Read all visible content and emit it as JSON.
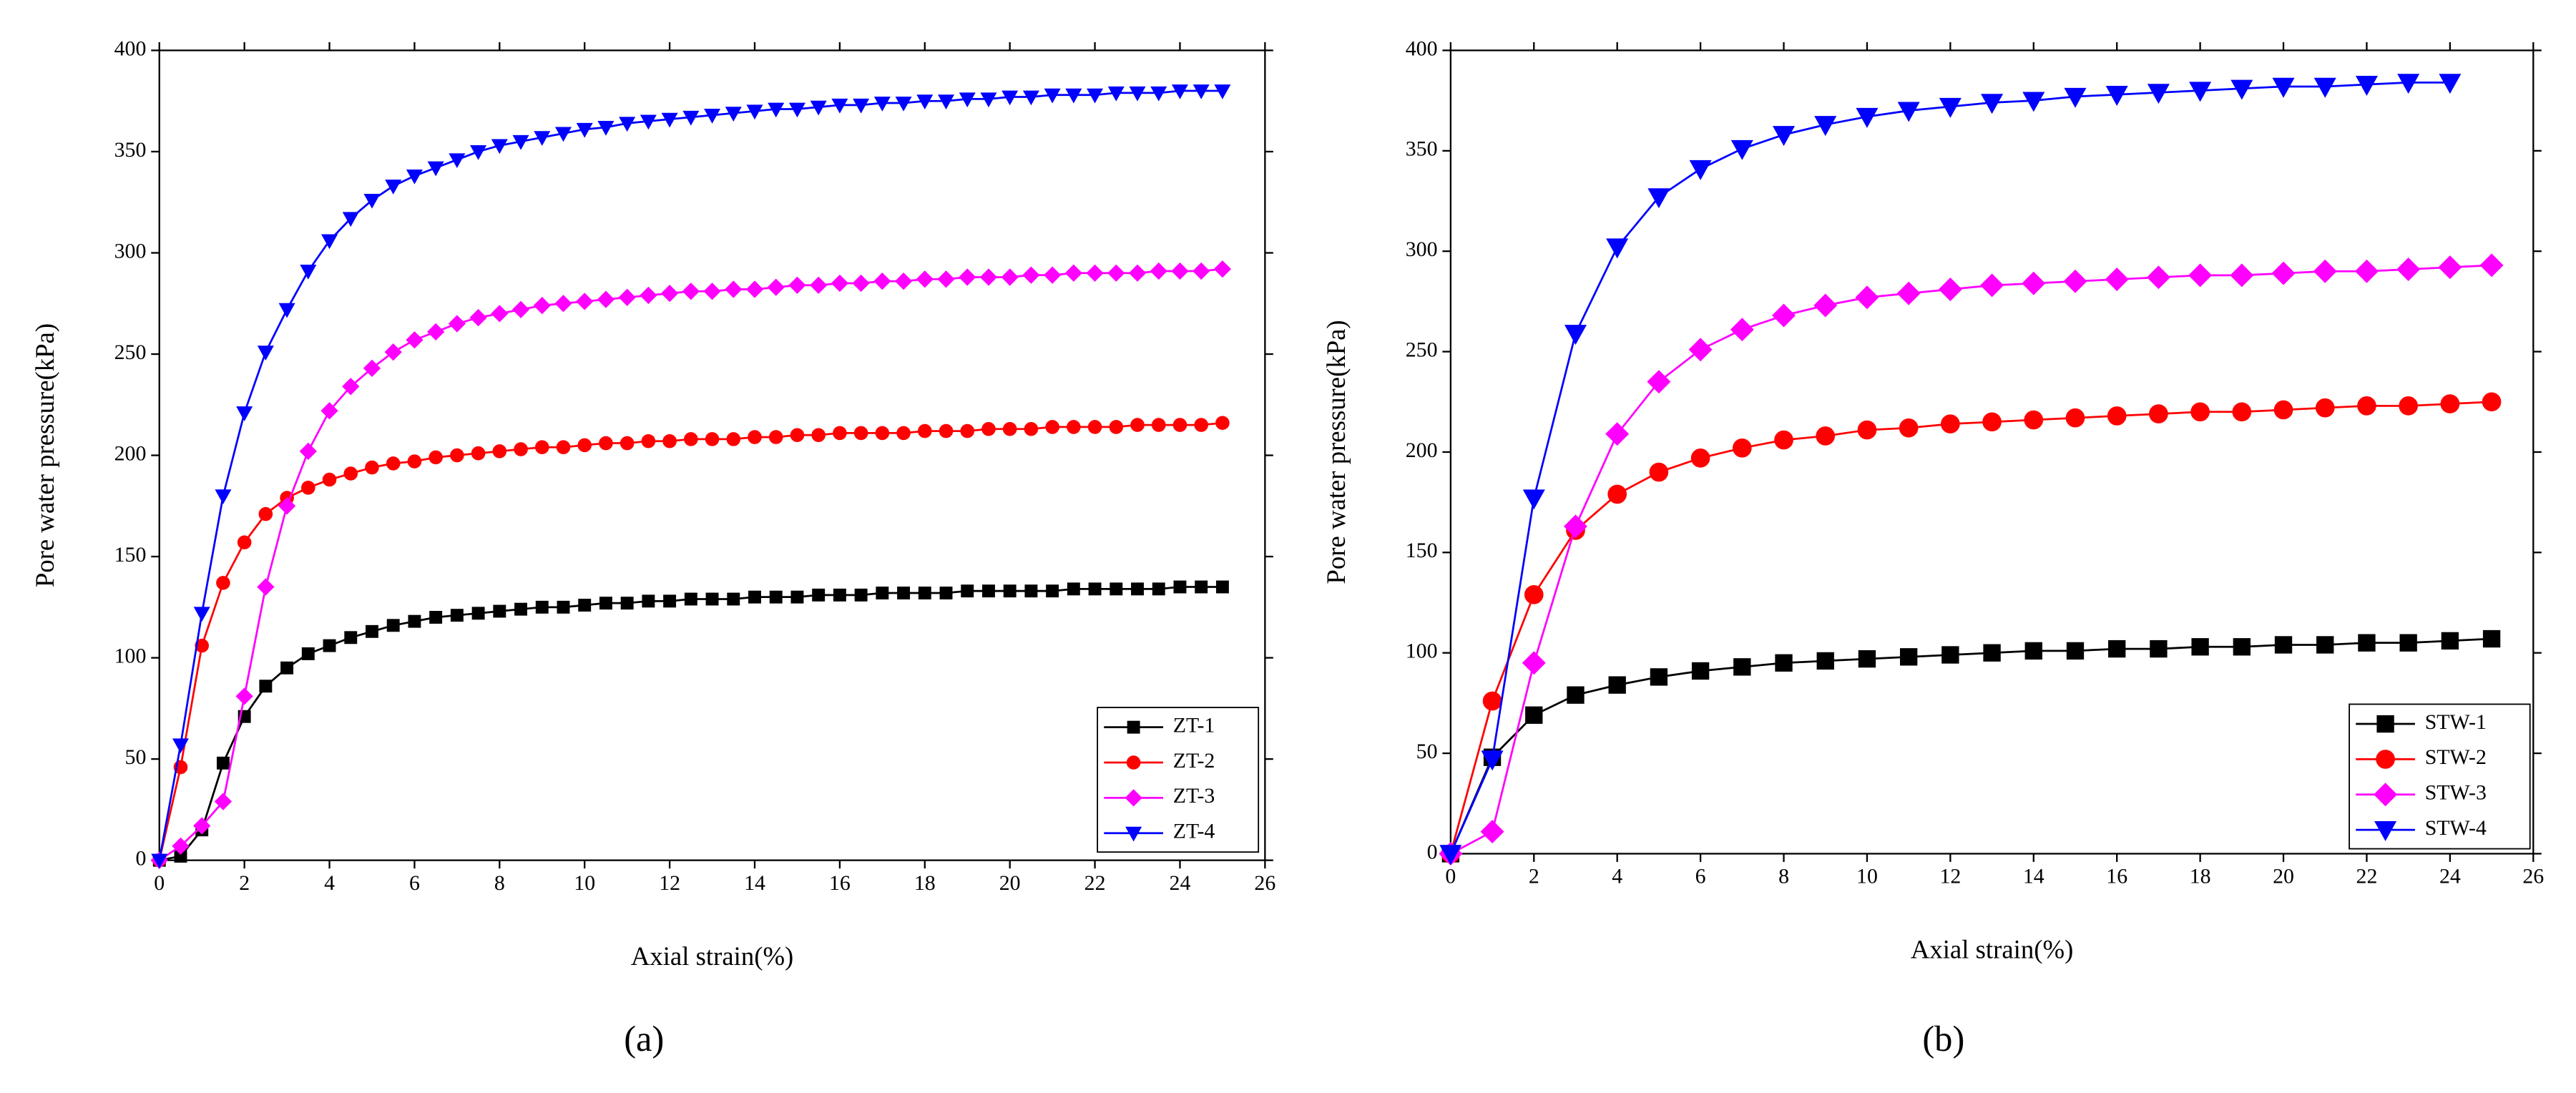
{
  "chart_data": [
    {
      "type": "line",
      "caption": "(a)",
      "xlabel": "Axial strain(%)",
      "ylabel": "Pore water pressure(kPa)",
      "xlim": [
        0,
        26
      ],
      "ylim": [
        0,
        400
      ],
      "xticks": [
        0,
        2,
        4,
        6,
        8,
        10,
        12,
        14,
        16,
        18,
        20,
        22,
        24,
        26
      ],
      "yticks": [
        0,
        50,
        100,
        150,
        200,
        250,
        300,
        350,
        400
      ],
      "legend": "lower right",
      "x": [
        0,
        0.5,
        1,
        1.5,
        2,
        2.5,
        3,
        3.5,
        4,
        4.5,
        5,
        5.5,
        6,
        6.5,
        7,
        7.5,
        8,
        8.5,
        9,
        9.5,
        10,
        10.5,
        11,
        11.5,
        12,
        12.5,
        13,
        13.5,
        14,
        14.5,
        15,
        15.5,
        16,
        16.5,
        17,
        17.5,
        18,
        18.5,
        19,
        19.5,
        20,
        20.5,
        21,
        21.5,
        22,
        22.5,
        23,
        23.5,
        24,
        24.5,
        25
      ],
      "series": [
        {
          "name": "ZT-1",
          "color": "#000000",
          "marker": "square",
          "values": [
            0,
            2,
            15,
            48,
            71,
            86,
            95,
            102,
            106,
            110,
            113,
            116,
            118,
            120,
            121,
            122,
            123,
            124,
            125,
            125,
            126,
            127,
            127,
            128,
            128,
            129,
            129,
            129,
            130,
            130,
            130,
            131,
            131,
            131,
            132,
            132,
            132,
            132,
            133,
            133,
            133,
            133,
            133,
            134,
            134,
            134,
            134,
            134,
            135,
            135,
            135
          ]
        },
        {
          "name": "ZT-2",
          "color": "#ff0000",
          "marker": "circle",
          "values": [
            0,
            46,
            106,
            137,
            157,
            171,
            179,
            184,
            188,
            191,
            194,
            196,
            197,
            199,
            200,
            201,
            202,
            203,
            204,
            204,
            205,
            206,
            206,
            207,
            207,
            208,
            208,
            208,
            209,
            209,
            210,
            210,
            211,
            211,
            211,
            211,
            212,
            212,
            212,
            213,
            213,
            213,
            214,
            214,
            214,
            214,
            215,
            215,
            215,
            215,
            216
          ]
        },
        {
          "name": "ZT-3",
          "color": "#ff00ff",
          "marker": "diamond",
          "values": [
            0,
            7,
            17,
            29,
            81,
            135,
            175,
            202,
            222,
            234,
            243,
            251,
            257,
            261,
            265,
            268,
            270,
            272,
            274,
            275,
            276,
            277,
            278,
            279,
            280,
            281,
            281,
            282,
            282,
            283,
            284,
            284,
            285,
            285,
            286,
            286,
            287,
            287,
            288,
            288,
            288,
            289,
            289,
            290,
            290,
            290,
            290,
            291,
            291,
            291,
            292
          ]
        },
        {
          "name": "ZT-4",
          "color": "#0000ff",
          "marker": "triangle-down",
          "values": [
            0,
            57,
            122,
            180,
            221,
            251,
            272,
            291,
            306,
            317,
            326,
            333,
            338,
            342,
            346,
            350,
            353,
            355,
            357,
            359,
            361,
            362,
            364,
            365,
            366,
            367,
            368,
            369,
            370,
            371,
            371,
            372,
            373,
            373,
            374,
            374,
            375,
            375,
            376,
            376,
            377,
            377,
            378,
            378,
            378,
            379,
            379,
            379,
            380,
            380,
            380
          ]
        }
      ]
    },
    {
      "type": "line",
      "caption": "(b)",
      "xlabel": "Axial strain(%)",
      "ylabel": "Pore water pressure(kPa)",
      "xlim": [
        0,
        26
      ],
      "ylim": [
        0,
        400
      ],
      "xticks": [
        0,
        2,
        4,
        6,
        8,
        10,
        12,
        14,
        16,
        18,
        20,
        22,
        24,
        26
      ],
      "yticks": [
        0,
        50,
        100,
        150,
        200,
        250,
        300,
        350,
        400
      ],
      "legend": "lower right",
      "x": [
        0,
        1,
        2,
        3,
        4,
        5,
        6,
        7,
        8,
        9,
        10,
        11,
        12,
        13,
        14,
        15,
        16,
        17,
        18,
        19,
        20,
        21,
        22,
        23,
        24,
        25
      ],
      "series": [
        {
          "name": "STW-1",
          "color": "#000000",
          "marker": "square",
          "values": [
            0,
            48,
            69,
            79,
            84,
            88,
            91,
            93,
            95,
            96,
            97,
            98,
            99,
            100,
            101,
            101,
            102,
            102,
            103,
            103,
            104,
            104,
            105,
            105,
            106,
            107
          ]
        },
        {
          "name": "STW-2",
          "color": "#ff0000",
          "marker": "circle",
          "values": [
            0,
            76,
            129,
            161,
            179,
            190,
            197,
            202,
            206,
            208,
            211,
            212,
            214,
            215,
            216,
            217,
            218,
            219,
            220,
            220,
            221,
            222,
            223,
            223,
            224,
            225
          ]
        },
        {
          "name": "STW-3",
          "color": "#ff00ff",
          "marker": "diamond",
          "values": [
            0,
            11,
            95,
            163,
            209,
            235,
            251,
            261,
            268,
            273,
            277,
            279,
            281,
            283,
            284,
            285,
            286,
            287,
            288,
            288,
            289,
            290,
            290,
            291,
            292,
            293
          ]
        },
        {
          "name": "STW-4",
          "color": "#0000ff",
          "marker": "triangle-down",
          "values": [
            0,
            47,
            177,
            259,
            302,
            327,
            341,
            351,
            358,
            363,
            367,
            370,
            372,
            374,
            375,
            377,
            378,
            379,
            380,
            381,
            382,
            382,
            383,
            384,
            384,
            null
          ]
        }
      ]
    }
  ]
}
